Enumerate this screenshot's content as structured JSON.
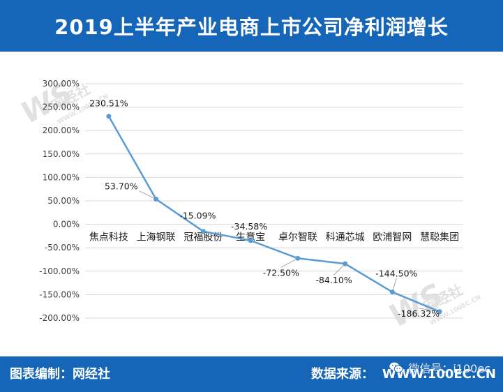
{
  "title": "2019上半年产业电商上市公司净利润增长",
  "footer": {
    "compiler": "图表编制：网经社",
    "source_label": "数据来源：",
    "source_url": "WWW.100EC.CN",
    "wechat": "微信号：i100ec"
  },
  "watermark": {
    "brand": "网经社",
    "url": "WWW.100EC.CN"
  },
  "colors": {
    "header_bg": "#1565b8",
    "line": "#5b9bd5",
    "grid": "#d9d9d9"
  },
  "chart_data": {
    "type": "line",
    "categories": [
      "焦点科技",
      "上海钢联",
      "冠福股份",
      "生意宝",
      "卓尔智联",
      "科通芯城",
      "欧浦智网",
      "慧聪集团"
    ],
    "values": [
      230.51,
      53.7,
      -15.09,
      -34.58,
      -72.5,
      -84.1,
      -144.5,
      -186.32
    ],
    "data_labels": [
      "230.51%",
      "53.70%",
      "-15.09%",
      "-34.58%",
      "-72.50%",
      "-84.10%",
      "-144.50%",
      "-186.32%"
    ],
    "yticks": [
      300,
      250,
      200,
      150,
      100,
      50,
      0,
      -50,
      -100,
      -150,
      -200
    ],
    "ytick_labels": [
      "300.00%",
      "250.00%",
      "200.00%",
      "150.00%",
      "100.00%",
      "50.00%",
      "0.00%",
      "-50.00%",
      "-100.00%",
      "-150.00%",
      "-200.00%"
    ],
    "ylim": [
      -200,
      300
    ],
    "grid": true,
    "legend": "none"
  }
}
